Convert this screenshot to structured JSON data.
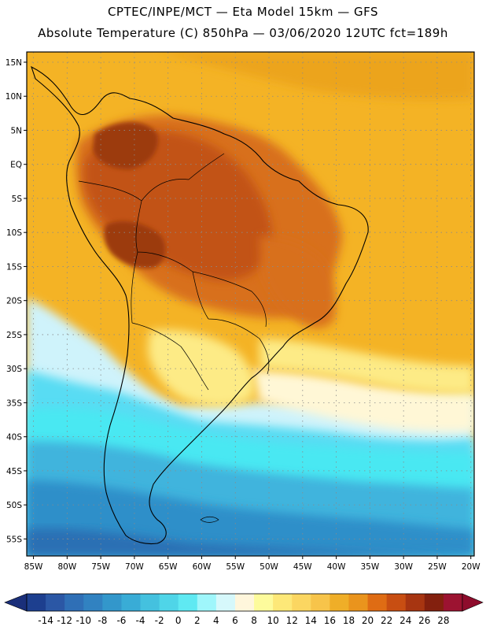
{
  "header": {
    "line1": "CPTEC/INPE/MCT —  Eta Model 15km — GFS",
    "line2": "Absolute Temperature (C) 850hPa — 03/06/2020 12UTC fct=189h"
  },
  "map": {
    "lat_labels": [
      "15N",
      "10N",
      "5N",
      "EQ",
      "5S",
      "10S",
      "15S",
      "20S",
      "25S",
      "30S",
      "35S",
      "40S",
      "45S",
      "50S",
      "55S"
    ],
    "lon_labels": [
      "85W",
      "80W",
      "75W",
      "70W",
      "65W",
      "60W",
      "55W",
      "50W",
      "45W",
      "40W",
      "35W",
      "30W",
      "25W",
      "20W"
    ],
    "lat_values": [
      15,
      10,
      5,
      0,
      -5,
      -10,
      -15,
      -20,
      -25,
      -30,
      -35,
      -40,
      -45,
      -50,
      -55
    ],
    "lon_values": [
      -85,
      -80,
      -75,
      -70,
      -65,
      -60,
      -55,
      -50,
      -45,
      -40,
      -35,
      -30,
      -25,
      -20
    ],
    "extent": {
      "west": -86,
      "east": -19.5,
      "north": 16.5,
      "south": -57.5
    },
    "colors": {
      "ocean_base": "#f4b325",
      "land_base": "#eca41f",
      "interior_hot": "#d8701a",
      "core_hot": "#c25214",
      "hottest": "#9c3a10",
      "south_pale": "#fdeb86",
      "south_cream": "#fff7d6",
      "cool_pale": "#cff3fb",
      "cyan": "#58dcf3",
      "cyan_bright": "#48e8f2",
      "mid_blue": "#3fb4dd",
      "deep_blue": "#2f8fc9",
      "darkest_blue": "#2a70b4",
      "grid_line": "#8a8a8a",
      "frame": "#000000"
    }
  },
  "colorbar": {
    "labels": [
      "-14",
      "-12",
      "-10",
      "-8",
      "-6",
      "-4",
      "-2",
      "0",
      "2",
      "4",
      "6",
      "8",
      "10",
      "12",
      "14",
      "16",
      "18",
      "20",
      "22",
      "24",
      "26",
      "28"
    ],
    "colors": [
      "#1d3f8f",
      "#2b57a5",
      "#2f6fb6",
      "#3182c1",
      "#3397cb",
      "#39acd6",
      "#44c1df",
      "#4fd5e8",
      "#5fe9f2",
      "#9ff6fb",
      "#d6f8fb",
      "#fff6dc",
      "#fdfb9c",
      "#fde878",
      "#fbd661",
      "#f7c44a",
      "#efae28",
      "#ea941d",
      "#df6c14",
      "#c84e12",
      "#a73511",
      "#83200e",
      "#9c1331"
    ],
    "underflow_color": "#1a2f7a",
    "overflow_color": "#8e0c2c"
  }
}
